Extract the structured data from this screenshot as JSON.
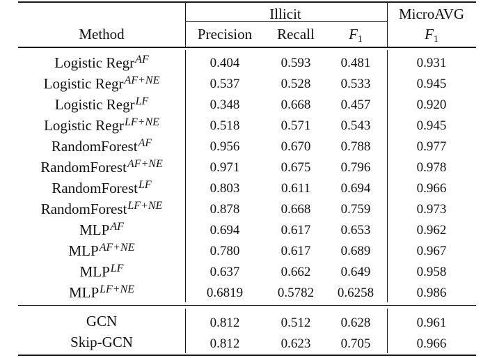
{
  "header": {
    "group_illicit": "Illicit",
    "group_microavg": "MicroAVG",
    "method": "Method",
    "precision": "Precision",
    "recall": "Recall",
    "f1_symbol": "F",
    "f1_subscript": "1"
  },
  "rows": [
    {
      "method": "Logistic Regr",
      "sup": "AF",
      "precision": "0.404",
      "recall": "0.593",
      "f1": "0.481",
      "micro_f1": "0.931"
    },
    {
      "method": "Logistic Regr",
      "sup": "AF+NE",
      "precision": "0.537",
      "recall": "0.528",
      "f1": "0.533",
      "micro_f1": "0.945"
    },
    {
      "method": "Logistic Regr",
      "sup": "LF",
      "precision": "0.348",
      "recall": "0.668",
      "f1": "0.457",
      "micro_f1": "0.920"
    },
    {
      "method": "Logistic Regr",
      "sup": "LF+NE",
      "precision": "0.518",
      "recall": "0.571",
      "f1": "0.543",
      "micro_f1": "0.945"
    },
    {
      "method": "RandomForest",
      "sup": "AF",
      "precision": "0.956",
      "recall": "0.670",
      "f1": "0.788",
      "micro_f1": "0.977"
    },
    {
      "method": "RandomForest",
      "sup": "AF+NE",
      "precision": "0.971",
      "recall": "0.675",
      "f1": "0.796",
      "micro_f1": "0.978"
    },
    {
      "method": "RandomForest",
      "sup": "LF",
      "precision": "0.803",
      "recall": "0.611",
      "f1": "0.694",
      "micro_f1": "0.966"
    },
    {
      "method": "RandomForest",
      "sup": "LF+NE",
      "precision": "0.878",
      "recall": "0.668",
      "f1": "0.759",
      "micro_f1": "0.973"
    },
    {
      "method": "MLP",
      "sup": "AF",
      "precision": "0.694",
      "recall": "0.617",
      "f1": "0.653",
      "micro_f1": "0.962"
    },
    {
      "method": "MLP",
      "sup": "AF+NE",
      "precision": "0.780",
      "recall": "0.617",
      "f1": "0.689",
      "micro_f1": "0.967"
    },
    {
      "method": "MLP",
      "sup": "LF",
      "precision": "0.637",
      "recall": "0.662",
      "f1": "0.649",
      "micro_f1": "0.958"
    },
    {
      "method": "MLP",
      "sup": "LF+NE",
      "precision": "0.6819",
      "recall": "0.5782",
      "f1": "0.6258",
      "micro_f1": "0.986"
    },
    {
      "method": "GCN",
      "sup": "",
      "precision": "0.812",
      "recall": "0.512",
      "f1": "0.628",
      "micro_f1": "0.961"
    },
    {
      "method": "Skip-GCN",
      "sup": "",
      "precision": "0.812",
      "recall": "0.623",
      "f1": "0.705",
      "micro_f1": "0.966"
    }
  ]
}
